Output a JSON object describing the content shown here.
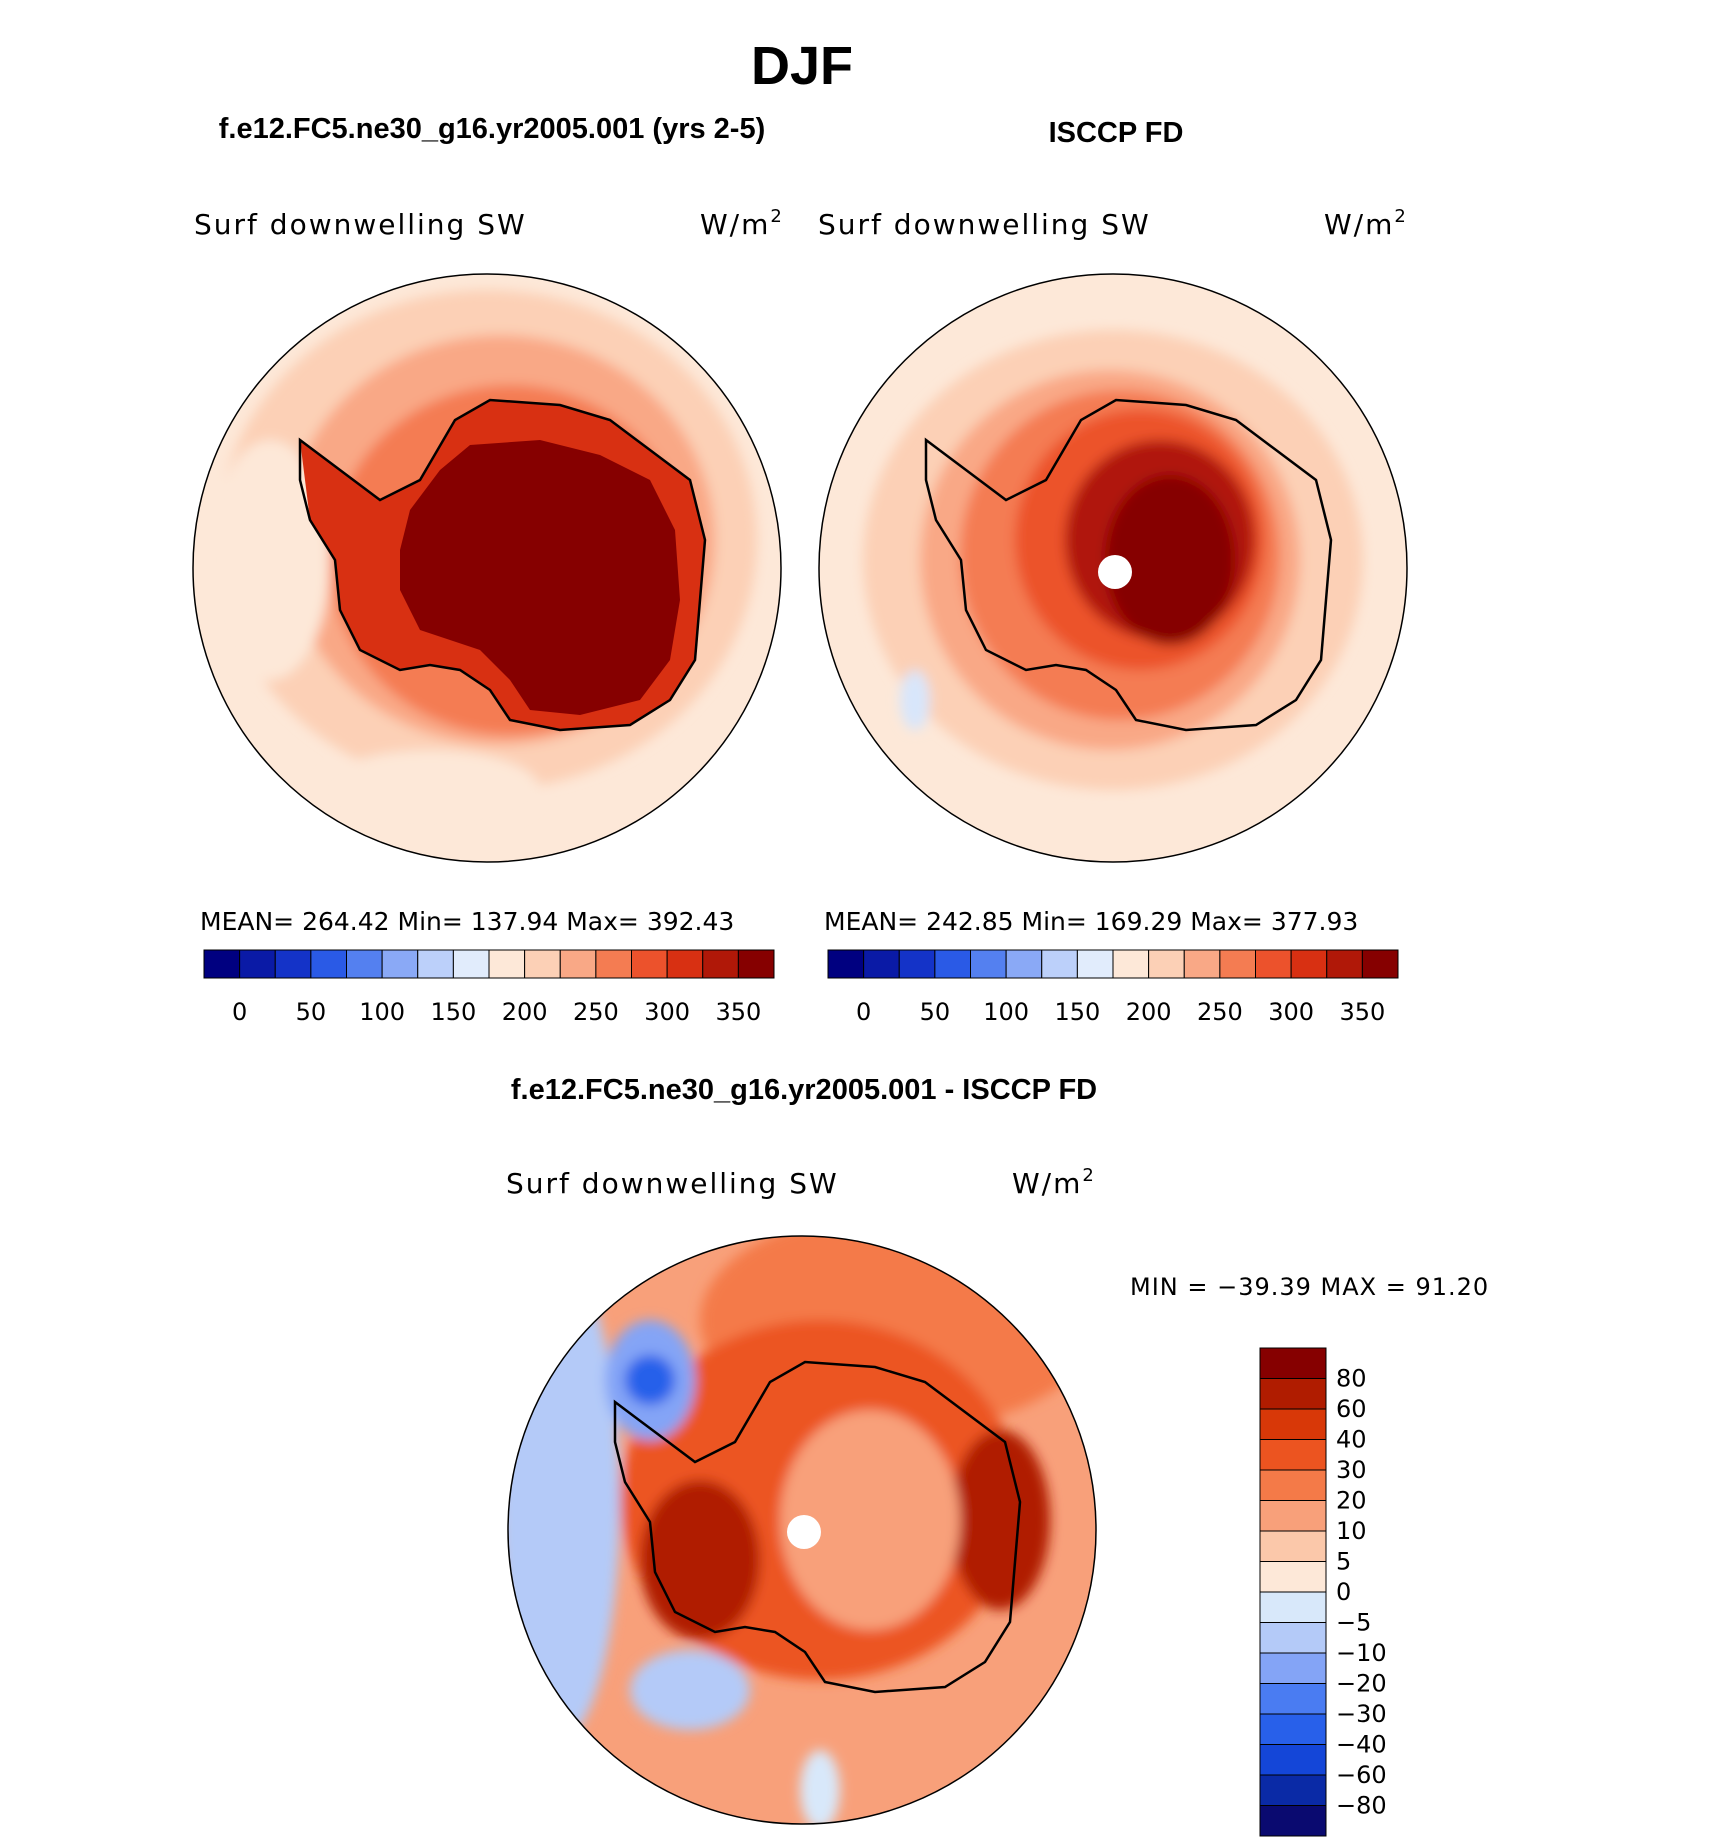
{
  "figure": {
    "season": "DJF",
    "top_left_title": "f.e12.FC5.ne30_g16.yr2005.001 (yrs 2-5)",
    "top_right_title": "ISCCP FD",
    "diff_title": "f.e12.FC5.ne30_g16.yr2005.001 - ISCCP FD"
  },
  "colors": {
    "abs_scale": [
      "#000080",
      "#0a1aa6",
      "#1433c8",
      "#2a5ae6",
      "#5480f0",
      "#8aa9f6",
      "#bcd0fa",
      "#e1ecfc",
      "#fde8d8",
      "#fcd0b6",
      "#f9a886",
      "#f47c52",
      "#ec522c",
      "#d83012",
      "#b01808",
      "#860000"
    ],
    "diff_scale": [
      "#0a0a70",
      "#0a2aa6",
      "#1446d8",
      "#2860ea",
      "#4a7cf2",
      "#84a4f6",
      "#b4caf8",
      "#d8e8fa",
      "#fde8d8",
      "#fbc8aa",
      "#f8a07a",
      "#f47a48",
      "#ec5420",
      "#d83808",
      "#b01c00",
      "#860000"
    ],
    "coastline": "#000000",
    "pole_fill": "#ffffff"
  },
  "chart_data": [
    {
      "type": "heatmap",
      "subtitle": "f.e12.FC5.ne30_g16.yr2005.001 (yrs 2-5)",
      "variable": "Surf downwelling SW",
      "units": "W/m",
      "units_sup": "2",
      "stats": {
        "mean_label": "MEAN=",
        "mean": "264.42",
        "min_label": "Min=",
        "min": "137.94",
        "max_label": "Max=",
        "max": "392.43"
      },
      "colorbar_ticks": [
        "0",
        "50",
        "100",
        "150",
        "200",
        "250",
        "300",
        "350"
      ],
      "contour_levels": [
        0,
        25,
        50,
        75,
        100,
        125,
        150,
        175,
        200,
        225,
        250,
        275,
        300,
        325,
        350
      ],
      "projection": "south-polar-stereographic",
      "region": {
        "pole_max": 392,
        "land_value": 380,
        "ring_60S": 225,
        "equatorward": 195
      },
      "pole_hole": false
    },
    {
      "type": "heatmap",
      "subtitle": "ISCCP FD",
      "variable": "Surf downwelling SW",
      "units": "W/m",
      "units_sup": "2",
      "stats": {
        "mean_label": "MEAN=",
        "mean": "242.85",
        "min_label": "Min=",
        "min": "169.29",
        "max_label": "Max=",
        "max": "377.93"
      },
      "colorbar_ticks": [
        "0",
        "50",
        "100",
        "150",
        "200",
        "250",
        "300",
        "350"
      ],
      "contour_levels": [
        0,
        25,
        50,
        75,
        100,
        125,
        150,
        175,
        200,
        225,
        250,
        275,
        300,
        325,
        350
      ],
      "projection": "south-polar-stereographic",
      "region": {
        "pole_max": 377,
        "land_value": 320,
        "ring_60S": 225,
        "equatorward": 195
      },
      "pole_hole": true
    },
    {
      "type": "heatmap",
      "subtitle": "f.e12.FC5.ne30_g16.yr2005.001 - ISCCP FD",
      "variable": "Surf downwelling SW",
      "units": "W/m",
      "units_sup": "2",
      "stats": {
        "text": "MIN = −39.39 MAX =  91.20",
        "min": -39.39,
        "max": 91.2
      },
      "colorbar_ticks": [
        "80",
        "60",
        "40",
        "30",
        "20",
        "10",
        "5",
        "0",
        "−5",
        "−10",
        "−20",
        "−30",
        "−40",
        "−60",
        "−80"
      ],
      "contour_levels": [
        -80,
        -60,
        -40,
        -30,
        -20,
        -10,
        -5,
        0,
        5,
        10,
        20,
        30,
        40,
        60,
        80
      ],
      "projection": "south-polar-stereographic",
      "pole_hole": true
    }
  ]
}
